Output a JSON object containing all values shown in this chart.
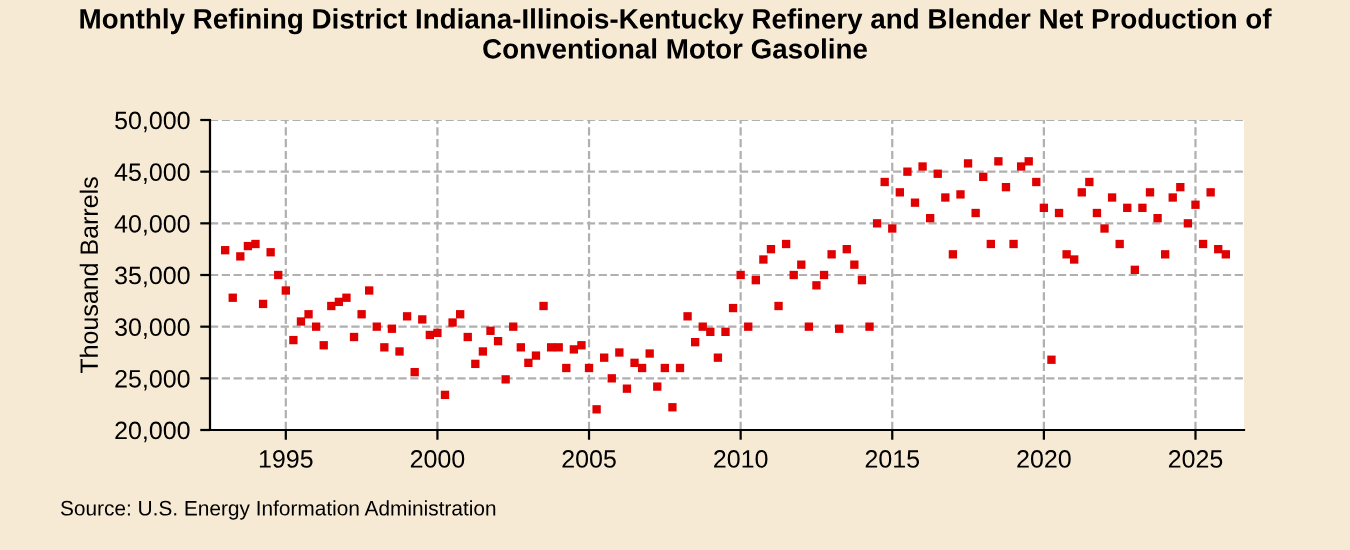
{
  "chart_data": {
    "type": "scatter",
    "title": "Monthly Refining District Indiana-Illinois-Kentucky Refinery and Blender Net Production of\nConventional Motor Gasoline",
    "ylabel": "Thousand Barrels",
    "annotations": [
      "Source: U.S. Energy Information Administration"
    ],
    "marker": "square",
    "grid": true,
    "x": [
      1993.0,
      1993.25,
      1993.5,
      1993.75,
      1994.0,
      1994.25,
      1994.5,
      1994.75,
      1995.0,
      1995.25,
      1995.5,
      1995.75,
      1996.0,
      1996.25,
      1996.5,
      1996.75,
      1997.0,
      1997.25,
      1997.5,
      1997.75,
      1998.0,
      1998.25,
      1998.5,
      1998.75,
      1999.0,
      1999.25,
      1999.5,
      1999.75,
      2000.0,
      2000.25,
      2000.5,
      2000.75,
      2001.0,
      2001.25,
      2001.5,
      2001.75,
      2002.0,
      2002.25,
      2002.5,
      2002.75,
      2003.0,
      2003.25,
      2003.5,
      2003.75,
      2004.0,
      2004.25,
      2004.5,
      2004.75,
      2005.0,
      2005.25,
      2005.5,
      2005.75,
      2006.0,
      2006.25,
      2006.5,
      2006.75,
      2007.0,
      2007.25,
      2007.5,
      2007.75,
      2008.0,
      2008.25,
      2008.5,
      2008.75,
      2009.0,
      2009.25,
      2009.5,
      2009.75,
      2010.0,
      2010.25,
      2010.5,
      2010.75,
      2011.0,
      2011.25,
      2011.5,
      2011.75,
      2012.0,
      2012.25,
      2012.5,
      2012.75,
      2013.0,
      2013.25,
      2013.5,
      2013.75,
      2014.0,
      2014.25,
      2014.5,
      2014.75,
      2015.0,
      2015.25,
      2015.5,
      2015.75,
      2016.0,
      2016.25,
      2016.5,
      2016.75,
      2017.0,
      2017.25,
      2017.5,
      2017.75,
      2018.0,
      2018.25,
      2018.5,
      2018.75,
      2019.0,
      2019.25,
      2019.5,
      2019.75,
      2020.0,
      2020.25,
      2020.5,
      2020.75,
      2021.0,
      2021.25,
      2021.5,
      2021.75,
      2022.0,
      2022.25,
      2022.5,
      2022.75,
      2023.0,
      2023.25,
      2023.5,
      2023.75,
      2024.0,
      2024.25,
      2024.5,
      2024.75,
      2025.0,
      2025.25,
      2025.5,
      2025.75,
      2026.0
    ],
    "series": [
      {
        "color": "#e00000",
        "values": [
          37400,
          32800,
          36800,
          37800,
          38000,
          32200,
          37200,
          35000,
          33500,
          28700,
          30500,
          31200,
          30000,
          28200,
          32000,
          32400,
          32800,
          29000,
          31200,
          33500,
          30000,
          28000,
          29800,
          27600,
          31000,
          25600,
          30700,
          29200,
          29400,
          23400,
          30400,
          31200,
          29000,
          26400,
          27600,
          29600,
          28600,
          24900,
          30000,
          28000,
          26500,
          27200,
          32000,
          28000,
          28000,
          26000,
          27800,
          28200,
          26000,
          22000,
          27000,
          25000,
          27500,
          24000,
          26500,
          26000,
          27400,
          24200,
          26000,
          22200,
          26000,
          31000,
          28500,
          30000,
          29500,
          27000,
          29500,
          31800,
          35000,
          30000,
          34500,
          36500,
          37500,
          32000,
          38000,
          35000,
          36000,
          30000,
          34000,
          35000,
          37000,
          29800,
          37500,
          36000,
          34500,
          30000,
          40000,
          44000,
          39500,
          43000,
          45000,
          42000,
          45500,
          40500,
          44800,
          42500,
          37000,
          42800,
          45800,
          41000,
          44500,
          38000,
          46000,
          43500,
          38000,
          45500,
          46000,
          44000,
          41500,
          26800,
          41000,
          37000,
          36500,
          43000,
          44000,
          41000,
          39500,
          42500,
          38000,
          41500,
          35500,
          41500,
          43000,
          40500,
          37000,
          42500,
          43500,
          40000,
          41800,
          38000,
          43000,
          37500,
          37000
        ]
      }
    ],
    "xlim": [
      1992.5,
      2026.6
    ],
    "xticks": [
      1995,
      2000,
      2005,
      2010,
      2015,
      2020,
      2025
    ],
    "ylim": [
      20000,
      50000
    ],
    "yticks": [
      {
        "value": 20000,
        "label": "20,000"
      },
      {
        "value": 25000,
        "label": "25,000"
      },
      {
        "value": 30000,
        "label": "30,000"
      },
      {
        "value": 35000,
        "label": "35,000"
      },
      {
        "value": 40000,
        "label": "40,000"
      },
      {
        "value": 45000,
        "label": "45,000"
      },
      {
        "value": 50000,
        "label": "50,000"
      }
    ]
  }
}
